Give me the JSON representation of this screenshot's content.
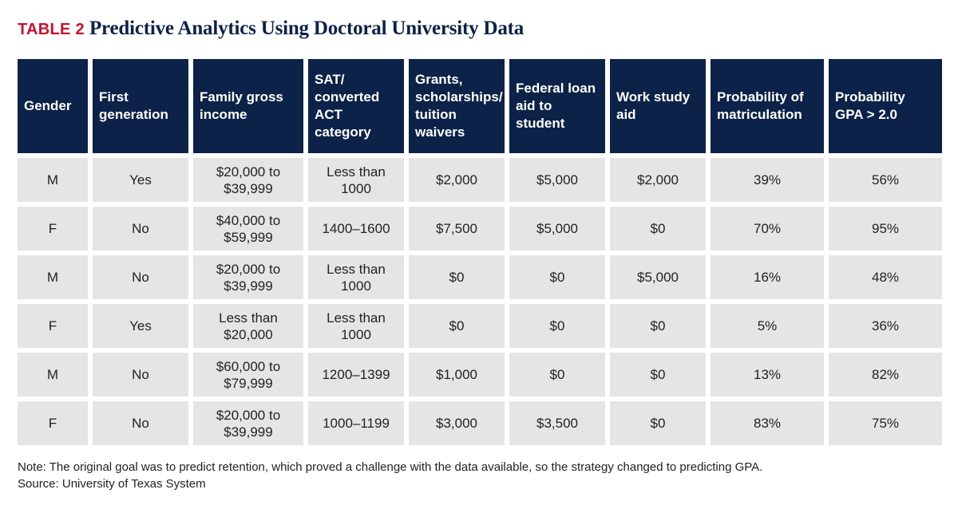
{
  "title": {
    "tag": "TABLE 2",
    "text": "Predictive Analytics Using Doctoral University Data"
  },
  "table": {
    "headers": [
      "Gender",
      "First generation",
      "Family gross income",
      "SAT/ converted ACT category",
      "Grants, scholarships/ tuition waivers",
      "Federal loan aid to student",
      "Work study aid",
      "Probability of matriculation",
      "Probability GPA > 2.0"
    ],
    "rows": [
      [
        "M",
        "Yes",
        "$20,000 to $39,999",
        "Less than 1000",
        "$2,000",
        "$5,000",
        "$2,000",
        "39%",
        "56%"
      ],
      [
        "F",
        "No",
        "$40,000 to $59,999",
        "1400–1600",
        "$7,500",
        "$5,000",
        "$0",
        "70%",
        "95%"
      ],
      [
        "M",
        "No",
        "$20,000 to $39,999",
        "Less than 1000",
        "$0",
        "$0",
        "$5,000",
        "16%",
        "48%"
      ],
      [
        "F",
        "Yes",
        "Less than $20,000",
        "Less than 1000",
        "$0",
        "$0",
        "$0",
        "5%",
        "36%"
      ],
      [
        "M",
        "No",
        "$60,000 to $79,999",
        "1200–1399",
        "$1,000",
        "$0",
        "$0",
        "13%",
        "82%"
      ],
      [
        "F",
        "No",
        "$20,000 to $39,999",
        "1000–1199",
        "$3,000",
        "$3,500",
        "$0",
        "83%",
        "75%"
      ]
    ]
  },
  "notes": {
    "note": "Note: The original goal was to predict retention, which proved a challenge with the data available, so the strategy changed to predicting GPA.",
    "source": "Source: University of Texas System"
  },
  "colors": {
    "header_bg": "#0c2248",
    "cell_bg": "#e5e5e5",
    "tag_red": "#c8102e"
  }
}
